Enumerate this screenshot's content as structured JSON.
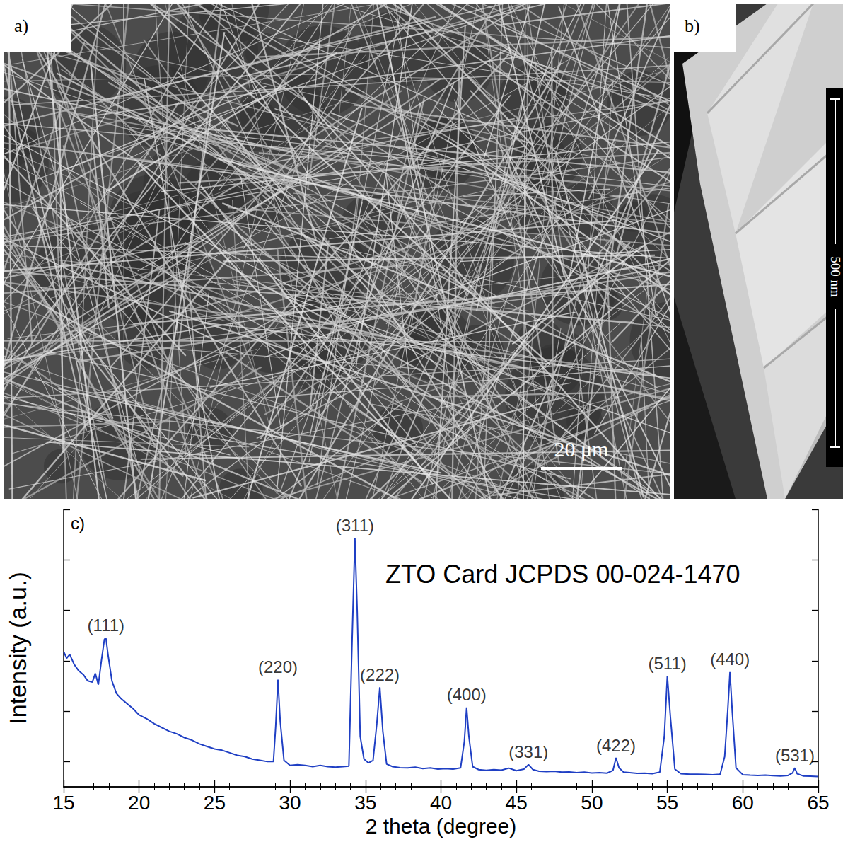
{
  "panels": [
    {
      "label": "a)",
      "scale_bar": "20 μm"
    },
    {
      "label": "b)",
      "scale_bar": "500 nm"
    }
  ],
  "chart_data": {
    "label": "c)",
    "type": "line",
    "x_label": "2 theta (degree)",
    "y_label": "Intensity (a.u.)",
    "color": "#1f3fc4",
    "x": [
      15,
      15.2,
      15.4,
      15.7,
      16,
      16.3,
      16.6,
      16.9,
      17.1,
      17.3,
      17.5,
      17.7,
      17.8,
      17.95,
      18.2,
      18.5,
      18.8,
      19.2,
      19.6,
      20,
      20.5,
      21,
      21.5,
      22,
      22.5,
      23,
      23.5,
      24,
      24.5,
      25,
      25.5,
      26,
      26.5,
      27,
      27.5,
      28,
      28.5,
      28.9,
      29.05,
      29.2,
      29.35,
      29.6,
      30,
      30.5,
      31,
      31.5,
      32,
      32.5,
      33,
      33.5,
      33.9,
      34.1,
      34.3,
      34.45,
      34.65,
      34.9,
      35.2,
      35.5,
      35.75,
      35.95,
      36.15,
      36.4,
      36.8,
      37.3,
      37.8,
      38.3,
      38.8,
      39.3,
      39.8,
      40.3,
      40.8,
      41.3,
      41.55,
      41.7,
      41.85,
      42.1,
      42.5,
      43,
      43.5,
      44,
      44.5,
      45,
      45.5,
      45.8,
      46.1,
      46.5,
      47,
      47.5,
      48,
      48.5,
      49,
      49.5,
      50,
      50.5,
      51,
      51.4,
      51.6,
      51.8,
      52.1,
      52.5,
      53,
      53.5,
      54,
      54.5,
      54.8,
      55,
      55.2,
      55.5,
      55.9,
      56.5,
      57,
      57.5,
      58,
      58.5,
      58.8,
      59,
      59.15,
      59.3,
      59.55,
      60,
      60.5,
      61,
      61.5,
      62,
      62.5,
      63,
      63.3,
      63.45,
      63.6,
      64,
      64.5,
      65
    ],
    "values": [
      53.6,
      51,
      52.5,
      48.5,
      46,
      44.5,
      42,
      41.5,
      45,
      40.5,
      50,
      58.5,
      59,
      52,
      42,
      37,
      35,
      33,
      31,
      28.5,
      27,
      25,
      23.5,
      22,
      21,
      19.5,
      18.5,
      17,
      16,
      15,
      14.5,
      13.5,
      12.5,
      12,
      11,
      10.5,
      10,
      10,
      24,
      42.5,
      26,
      10.5,
      8.5,
      8.8,
      8.5,
      8,
      8.5,
      8,
      7.8,
      8,
      8.2,
      55,
      98.5,
      70,
      20,
      11,
      9.5,
      10.5,
      25,
      39.5,
      22,
      9,
      8,
      7.6,
      7.5,
      7.8,
      7.2,
      7.5,
      7,
      7.2,
      7,
      7.5,
      18,
      31.5,
      20,
      8,
      6.8,
      6.5,
      6.8,
      6.6,
      7.4,
      6.4,
      7,
      8.8,
      6.8,
      6.2,
      6,
      6.2,
      5.8,
      5.9,
      5.6,
      5.8,
      5.5,
      5.6,
      5.4,
      6.5,
      11.5,
      7.5,
      5.8,
      5.6,
      5.3,
      5.4,
      5.2,
      5.8,
      20,
      44,
      28,
      7,
      5.2,
      5,
      5,
      4.9,
      4.8,
      5,
      12,
      30,
      45.5,
      30,
      7.5,
      4.8,
      4.6,
      4.5,
      4.6,
      4.4,
      4.3,
      4.5,
      5.5,
      7.5,
      5.2,
      4.3,
      4.2,
      4.1
    ],
    "xlim": [
      15,
      65
    ],
    "xticks": [
      15,
      20,
      25,
      30,
      35,
      40,
      45,
      50,
      55,
      60,
      65
    ],
    "ylim": [
      0,
      110
    ],
    "yticks": [
      10,
      30,
      50,
      70,
      90,
      110
    ],
    "tick_labels": "x",
    "grid": false,
    "annotations": [
      {
        "text": "ZTO Card JCPDS 00-024-1470"
      },
      {
        "text": "(111)",
        "x": 17.8
      },
      {
        "text": "(220)",
        "x": 29.2
      },
      {
        "text": "(311)",
        "x": 34.3
      },
      {
        "text": "(222)",
        "x": 35.95
      },
      {
        "text": "(400)",
        "x": 41.7
      },
      {
        "text": "(331)",
        "x": 45.8
      },
      {
        "text": "(422)",
        "x": 51.6
      },
      {
        "text": "(511)",
        "x": 55
      },
      {
        "text": "(440)",
        "x": 59.15
      },
      {
        "text": "(531)",
        "x": 63.45
      }
    ]
  }
}
